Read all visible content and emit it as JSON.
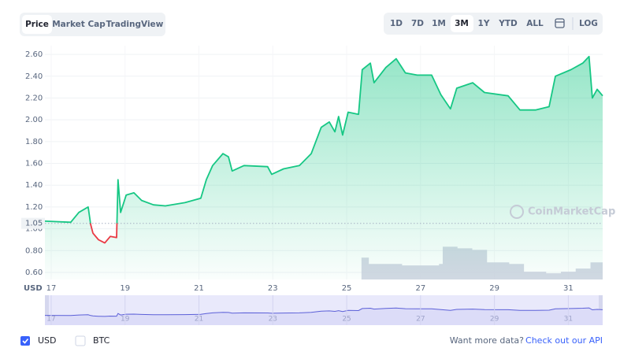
{
  "chart_data": {
    "type": "line",
    "y_label": "USD",
    "watermark": "CoinMarketCap",
    "baseline": 1.05,
    "colors": {
      "up": "#16c784",
      "down": "#ea3943"
    },
    "grid": true,
    "x": [
      16.83,
      17.53,
      17.75,
      18.0,
      18.07,
      18.13,
      18.28,
      18.45,
      18.6,
      18.77,
      18.81,
      18.88,
      19.03,
      19.24,
      19.45,
      19.77,
      20.09,
      20.62,
      21.05,
      21.2,
      21.37,
      21.65,
      21.8,
      21.9,
      22.22,
      22.86,
      22.97,
      23.29,
      23.72,
      24.04,
      24.31,
      24.53,
      24.68,
      24.78,
      24.89,
      25.04,
      25.32,
      25.42,
      25.64,
      25.74,
      26.06,
      26.34,
      26.59,
      26.91,
      27.3,
      27.55,
      27.81,
      27.98,
      28.41,
      28.73,
      29.37,
      29.69,
      30.11,
      30.48,
      30.65,
      31.07,
      31.39,
      31.56,
      31.65,
      31.78,
      31.93
    ],
    "values": [
      1.07,
      1.06,
      1.15,
      1.2,
      1.04,
      0.96,
      0.9,
      0.87,
      0.93,
      0.92,
      1.45,
      1.15,
      1.31,
      1.33,
      1.26,
      1.22,
      1.21,
      1.24,
      1.28,
      1.45,
      1.58,
      1.69,
      1.66,
      1.53,
      1.58,
      1.57,
      1.5,
      1.55,
      1.58,
      1.69,
      1.93,
      1.98,
      1.89,
      2.03,
      1.86,
      2.07,
      2.05,
      2.46,
      2.52,
      2.34,
      2.48,
      2.56,
      2.43,
      2.41,
      2.41,
      2.23,
      2.1,
      2.29,
      2.34,
      2.25,
      2.22,
      2.09,
      2.09,
      2.12,
      2.4,
      2.46,
      2.52,
      2.58,
      2.2,
      2.28,
      2.22
    ],
    "volume": {
      "color": "#cdd1df",
      "x": [
        25.4,
        25.6,
        26.0,
        26.5,
        27.0,
        27.5,
        27.6,
        28.0,
        28.4,
        28.8,
        29.4,
        29.8,
        30.4,
        30.8,
        31.2,
        31.6,
        31.93
      ],
      "values": [
        28,
        20,
        20,
        18,
        18,
        20,
        42,
        40,
        38,
        22,
        20,
        10,
        8,
        10,
        14,
        22,
        30
      ]
    },
    "y2lim": [
      0,
      300
    ],
    "xlim": [
      16.83,
      31.93
    ],
    "xticks": [
      17,
      19,
      21,
      23,
      25,
      27,
      29,
      31
    ],
    "ylim": [
      0.535,
      2.68
    ],
    "yticks": [
      {
        "value": 0.6,
        "label": "0.60"
      },
      {
        "value": 0.8,
        "label": "0.80"
      },
      {
        "value": 1.0,
        "label": "1.00"
      },
      {
        "value": 1.2,
        "label": "1.20"
      },
      {
        "value": 1.4,
        "label": "1.40"
      },
      {
        "value": 1.6,
        "label": "1.60"
      },
      {
        "value": 1.8,
        "label": "1.80"
      },
      {
        "value": 2.0,
        "label": "2.00"
      },
      {
        "value": 2.2,
        "label": "2.20"
      },
      {
        "value": 2.4,
        "label": "2.40"
      },
      {
        "value": 2.6,
        "label": "2.60"
      }
    ]
  },
  "ui": {
    "tabs": [
      "Price",
      "Market Cap",
      "TradingView"
    ],
    "ranges": [
      "1D",
      "7D",
      "1M",
      "3M",
      "1Y",
      "YTD",
      "ALL"
    ],
    "log": "LOG",
    "legend": [
      "USD",
      "BTC"
    ],
    "footer": {
      "text": "Want more data?",
      "link": "Check out our API"
    }
  }
}
